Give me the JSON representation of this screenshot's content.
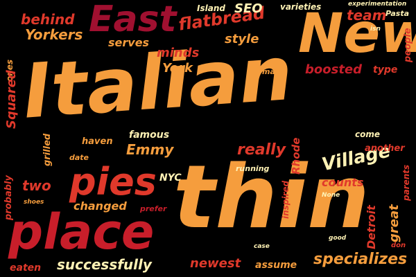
{
  "background": "#000000",
  "palette": [
    "#f59d3d",
    "#e0392b",
    "#a01030",
    "#fff2b5",
    "#ff8a2a",
    "#c81e2a"
  ],
  "words": {
    "italian": "Italian",
    "thin": "thin",
    "new": "New",
    "place": "place",
    "east": "East",
    "pies": "pies",
    "village": "Village",
    "flatbread": "flatbread",
    "team": "team",
    "seo": "SEO",
    "behind": "behind",
    "yorkers": "Yorkers",
    "island": "Island",
    "varieties": "varieties",
    "experimentation": "experimentation",
    "pasta": "Pasta",
    "isn": "isn",
    "people": "people",
    "serves": "serves",
    "style": "style",
    "minds": "minds",
    "york": "York",
    "many": "many",
    "boosted": "boosted",
    "type": "type",
    "ones": "ones",
    "squared": "Squared",
    "famous": "famous",
    "emmy": "Emmy",
    "haven": "haven",
    "date": "date",
    "grilled": "grilled",
    "come": "come",
    "another": "another",
    "really": "really",
    "rhode": "Rhode",
    "running": "running",
    "nyc": "NYC",
    "two": "two",
    "probably": "probably",
    "shoes": "shoes",
    "changed": "changed",
    "prefer": "prefer",
    "inspired": "inspired",
    "counts": "counts",
    "none": "None",
    "parents": "parents",
    "detroit": "Detroit",
    "great": "great",
    "good": "good",
    "case": "case",
    "don": "don",
    "eaten": "eaten",
    "successfully": "successfully",
    "newest": "newest",
    "assume": "assume",
    "specializes": "specializes"
  }
}
